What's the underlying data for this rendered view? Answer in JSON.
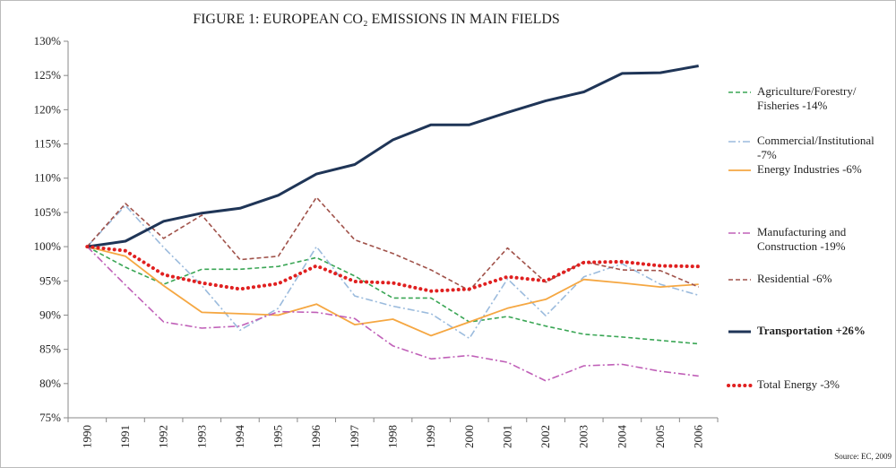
{
  "chart_data": {
    "type": "line",
    "title": "FIGURE 1: EUROPEAN CO₂ EMISSIONS IN MAIN FIELDS",
    "source": "Source: EC, 2009",
    "categories": [
      "1990",
      "1991",
      "1992",
      "1993",
      "1994",
      "1995",
      "1996",
      "1997",
      "1998",
      "1999",
      "2000",
      "2001",
      "2002",
      "2003",
      "2004",
      "2005",
      "2006"
    ],
    "ylim": [
      75,
      130
    ],
    "yticks": [
      {
        "value": 75,
        "label": "75%"
      },
      {
        "value": 80,
        "label": "80%"
      },
      {
        "value": 85,
        "label": "85%"
      },
      {
        "value": 90,
        "label": "90%"
      },
      {
        "value": 95,
        "label": "95%"
      },
      {
        "value": 100,
        "label": "100%"
      },
      {
        "value": 105,
        "label": "105%"
      },
      {
        "value": 110,
        "label": "110%"
      },
      {
        "value": 115,
        "label": "115%"
      },
      {
        "value": 120,
        "label": "120%"
      },
      {
        "value": 125,
        "label": "125%"
      },
      {
        "value": 130,
        "label": "130%"
      }
    ],
    "grid": false,
    "legend": "right",
    "series": [
      {
        "name": "Agriculture/Forestry/ Fisheries -14%",
        "color": "#3aa655",
        "line_style": "dashed",
        "values": [
          100,
          97,
          94.5,
          96.7,
          96.7,
          97.1,
          98.4,
          95.7,
          92.5,
          92.5,
          89,
          89.8,
          88.4,
          87.2,
          86.8,
          86.3,
          85.8
        ]
      },
      {
        "name": "Commercial/Institutional -7%",
        "color": "#9bbbdd",
        "line_style": "dashdot",
        "values": [
          100,
          106,
          99.9,
          94.3,
          87.8,
          91,
          100,
          92.8,
          91.3,
          90.2,
          86.6,
          95.3,
          89.9,
          95.6,
          97.5,
          94.5,
          92.9
        ]
      },
      {
        "name": "Energy Industries  -6%",
        "color": "#f5a742",
        "line_style": "solid",
        "values": [
          100,
          98.6,
          94.3,
          90.4,
          90.2,
          90,
          91.6,
          88.6,
          89.4,
          87,
          89,
          91,
          92.3,
          95.2,
          94.7,
          94.1,
          94.5
        ]
      },
      {
        "name": "Manufacturing and Construction  -19%",
        "color": "#c060b8",
        "line_style": "dashdot",
        "values": [
          100,
          94.4,
          89,
          88.1,
          88.4,
          90.5,
          90.4,
          89.5,
          85.5,
          83.6,
          84.1,
          83.1,
          80.4,
          82.6,
          82.8,
          81.8,
          81.1
        ]
      },
      {
        "name": "Residential  -6%",
        "color": "#a0524a",
        "line_style": "dashed",
        "values": [
          100,
          106.3,
          101.2,
          104.6,
          98.1,
          98.6,
          107.2,
          101,
          99,
          96.6,
          93.6,
          99.8,
          94.8,
          97.8,
          96.6,
          96.5,
          94.1
        ]
      },
      {
        "name": "Transportation  +26%",
        "color": "#1f3557",
        "line_style": "bold",
        "values": [
          100,
          100.8,
          103.7,
          104.9,
          105.6,
          107.5,
          110.6,
          112,
          115.6,
          117.8,
          117.8,
          119.6,
          121.3,
          122.6,
          125.3,
          125.4,
          126.4
        ]
      },
      {
        "name": "Total Energy  -3%",
        "color": "#e02020",
        "line_style": "dotted",
        "values": [
          100,
          99.4,
          95.9,
          94.7,
          93.8,
          94.6,
          97.2,
          94.9,
          94.7,
          93.5,
          93.8,
          95.6,
          95,
          97.7,
          97.8,
          97.2,
          97.1
        ]
      }
    ]
  }
}
